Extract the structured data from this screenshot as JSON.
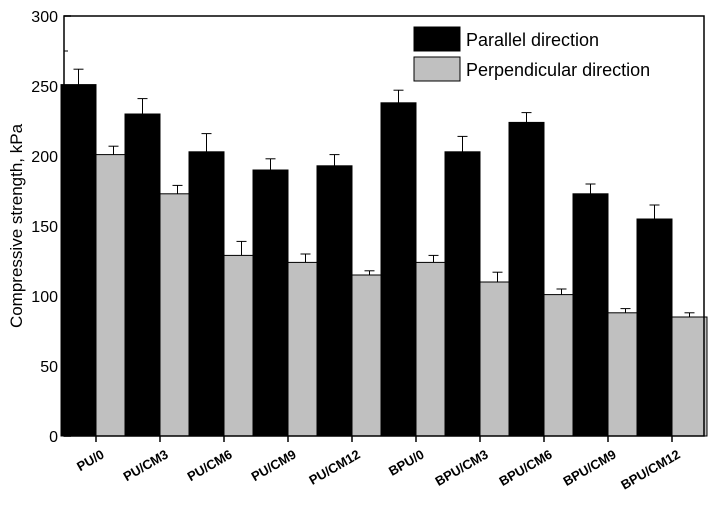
{
  "chart_data": {
    "type": "bar",
    "title": "",
    "xlabel": "",
    "ylabel": "Compressive strength, kPa",
    "ylim": [
      0,
      300
    ],
    "yticks": [
      0,
      50,
      100,
      150,
      200,
      250,
      300
    ],
    "categories": [
      "PU/0",
      "PU/CM3",
      "PU/CM6",
      "PU/CM9",
      "PU/CM12",
      "BPU/0",
      "BPU/CM3",
      "BPU/CM6",
      "BPU/CM9",
      "BPU/CM12"
    ],
    "series": [
      {
        "name": "Parallel direction",
        "color": "#000000",
        "values": [
          251,
          230,
          203,
          190,
          193,
          238,
          203,
          224,
          173,
          155
        ],
        "errors": [
          11,
          11,
          13,
          8,
          8,
          9,
          11,
          7,
          7,
          10
        ]
      },
      {
        "name": "Perpendicular direction",
        "color": "#c0c0c0",
        "values": [
          201,
          173,
          129,
          124,
          115,
          124,
          110,
          101,
          88,
          85
        ],
        "errors": [
          6,
          6,
          10,
          6,
          3,
          5,
          7,
          4,
          3,
          3
        ]
      }
    ],
    "legend_position": "top-right"
  }
}
